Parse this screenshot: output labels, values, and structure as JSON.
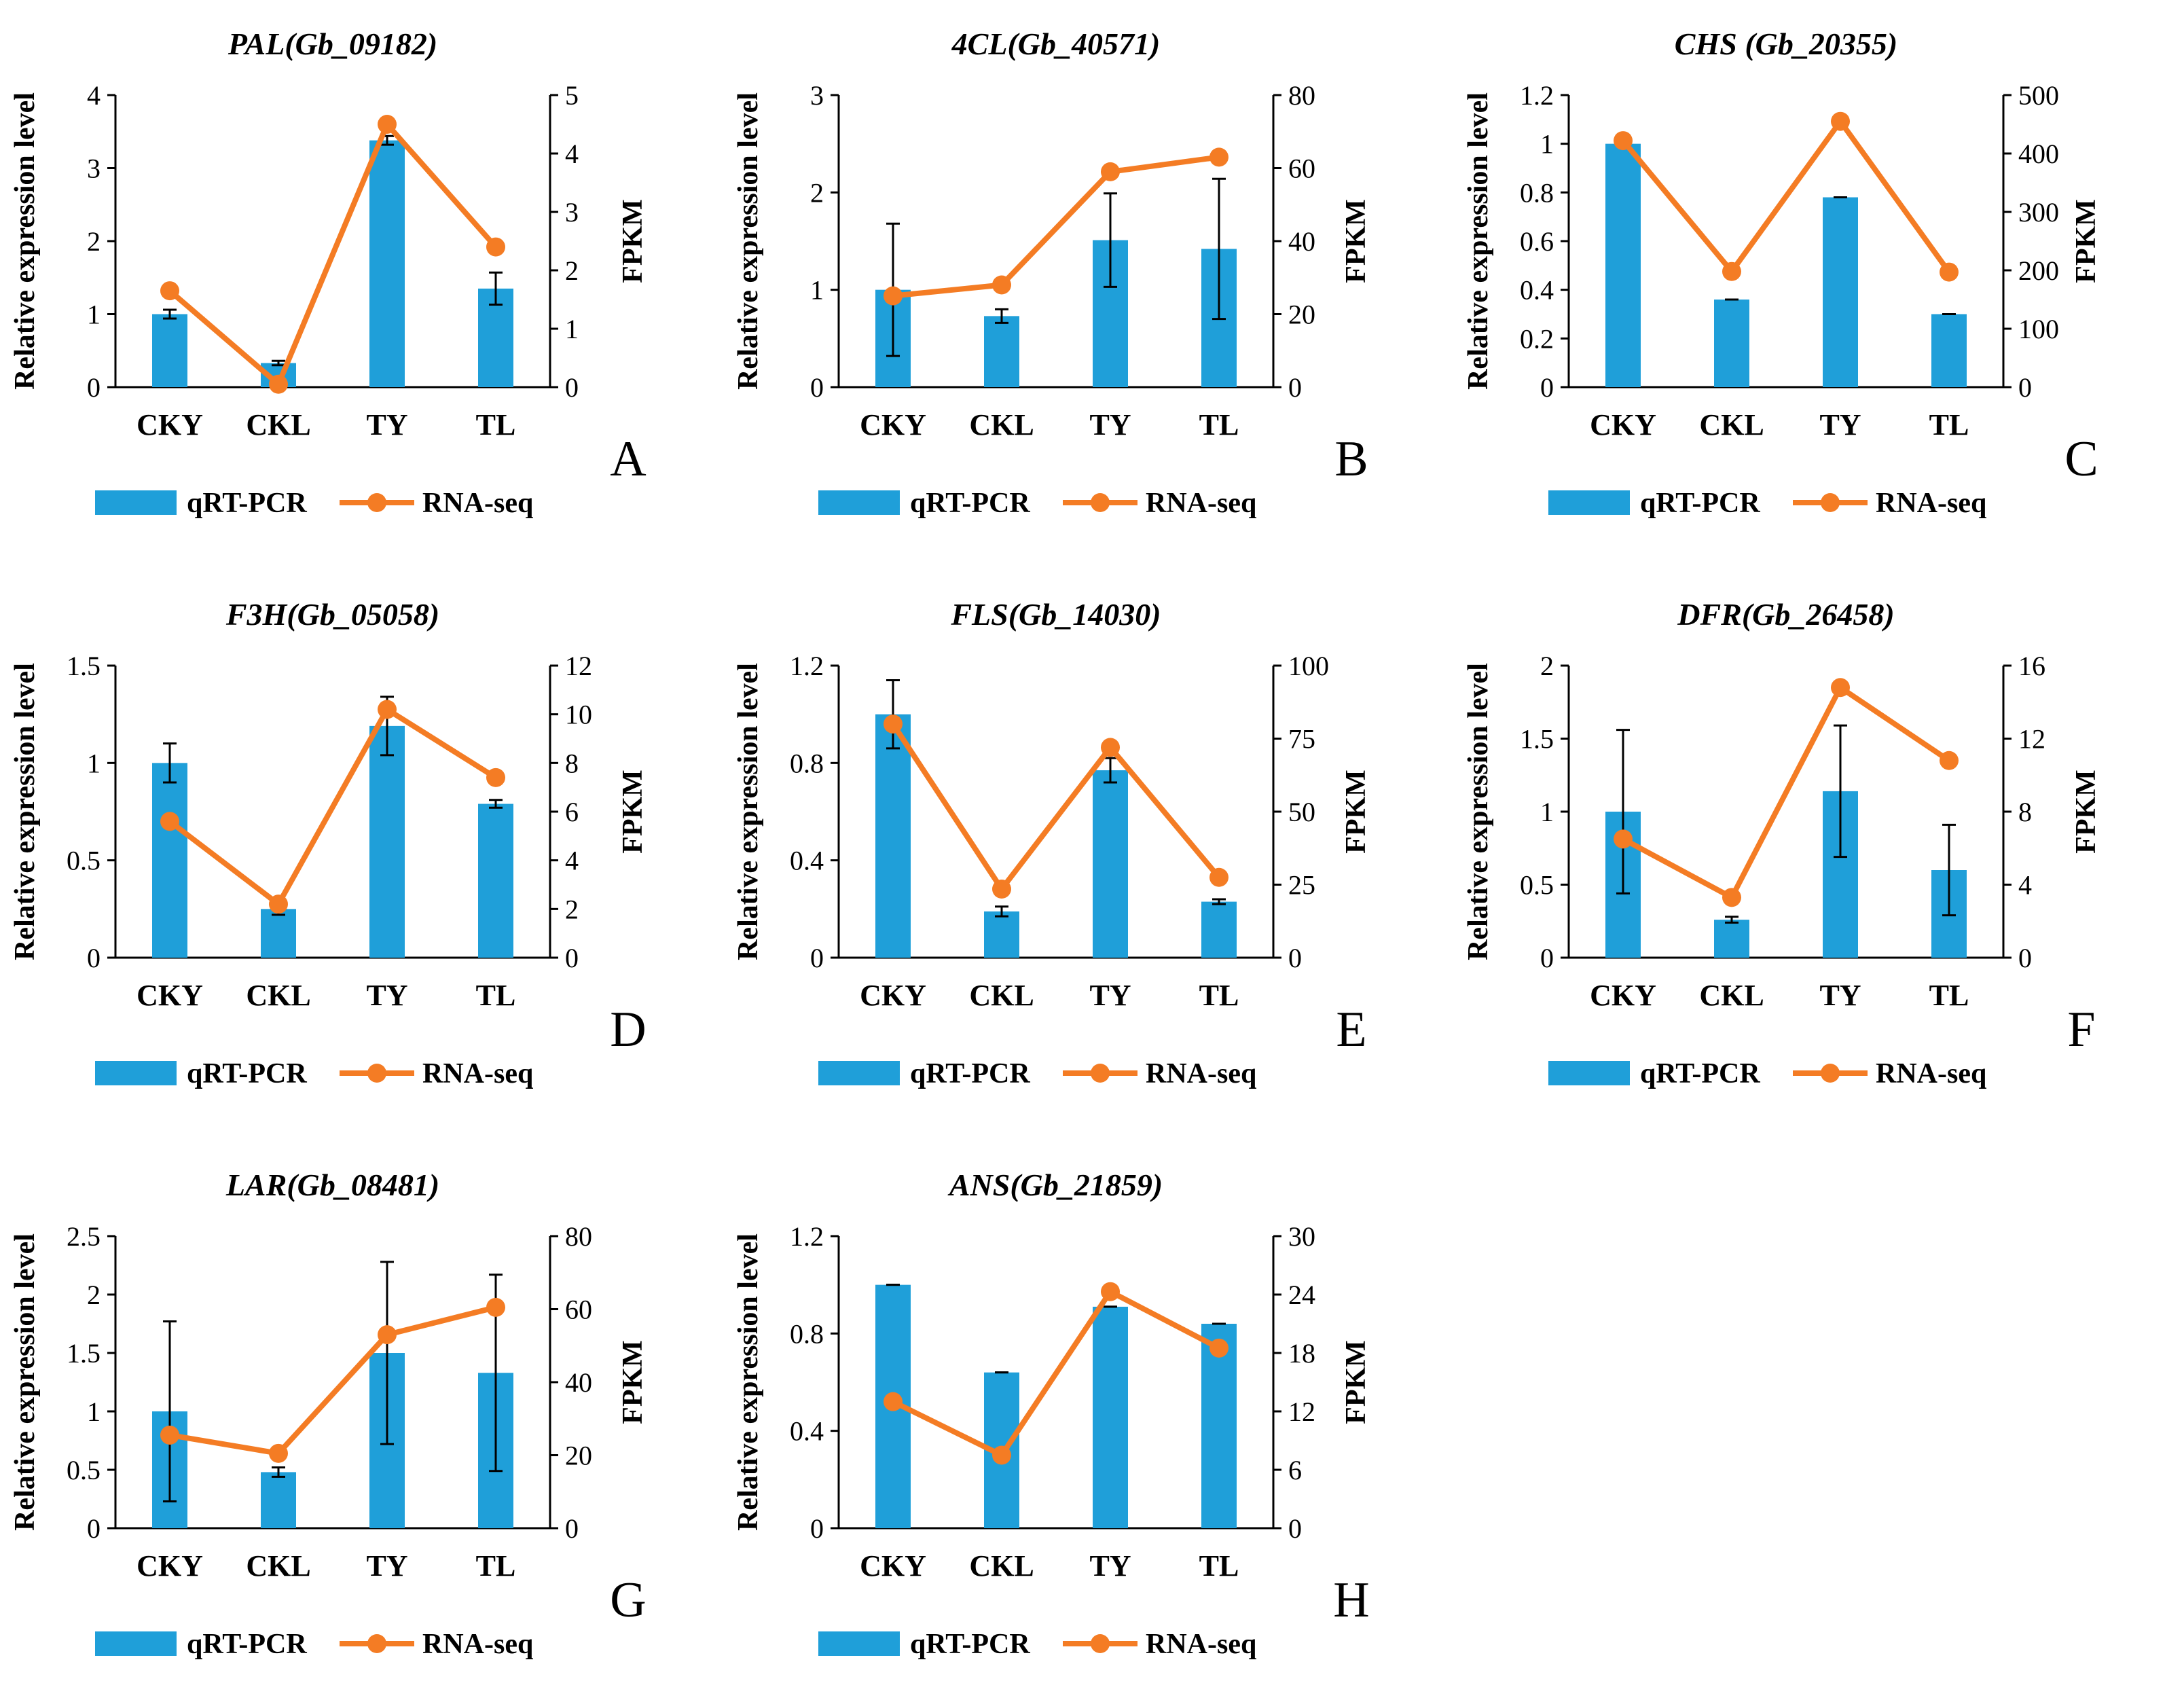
{
  "colors": {
    "bar": "#1f9fd9",
    "line": "#f47c24",
    "axis": "#000000"
  },
  "legend": {
    "bar_label": "qRT-PCR",
    "line_label": "RNA-seq"
  },
  "chart_data": [
    {
      "type": "bar+line",
      "panel": "A",
      "title": "PAL(Gb_09182)",
      "ylabel": "Relative expression level",
      "y2label": "FPKM",
      "categories": [
        "CKY",
        "CKL",
        "TY",
        "TL"
      ],
      "ylim": [
        0,
        4
      ],
      "yticks": [
        "0",
        "1",
        "2",
        "3",
        "4"
      ],
      "y2lim": [
        0,
        5
      ],
      "y2ticks": [
        "0",
        "1",
        "2",
        "3",
        "4",
        "5"
      ],
      "series": [
        {
          "name": "qRT-PCR",
          "axis": "left",
          "kind": "bar",
          "values": [
            1.0,
            0.33,
            3.38,
            1.35
          ],
          "errors": [
            0.06,
            0.03,
            0.06,
            0.22
          ]
        },
        {
          "name": "RNA-seq",
          "axis": "right",
          "kind": "line",
          "values": [
            1.65,
            0.05,
            4.5,
            2.4
          ]
        }
      ]
    },
    {
      "type": "bar+line",
      "panel": "B",
      "title": "4CL(Gb_40571)",
      "ylabel": "Relative expression level",
      "y2label": "FPKM",
      "categories": [
        "CKY",
        "CKL",
        "TY",
        "TL"
      ],
      "ylim": [
        0,
        3
      ],
      "yticks": [
        "0",
        "1",
        "2",
        "3"
      ],
      "y2lim": [
        0,
        80
      ],
      "y2ticks": [
        "0",
        "20",
        "40",
        "60",
        "80"
      ],
      "series": [
        {
          "name": "qRT-PCR",
          "axis": "left",
          "kind": "bar",
          "values": [
            1.0,
            0.73,
            1.51,
            1.42
          ],
          "errors": [
            0.68,
            0.07,
            0.48,
            0.72
          ]
        },
        {
          "name": "RNA-seq",
          "axis": "right",
          "kind": "line",
          "values": [
            25,
            28,
            59,
            63
          ]
        }
      ]
    },
    {
      "type": "bar+line",
      "panel": "C",
      "title": "CHS (Gb_20355)",
      "ylabel": "Relative expression level",
      "y2label": "FPKM",
      "categories": [
        "CKY",
        "CKL",
        "TY",
        "TL"
      ],
      "ylim": [
        0,
        1.2
      ],
      "yticks": [
        "0",
        "0.2",
        "0.4",
        "0.6",
        "0.8",
        "1",
        "1.2"
      ],
      "y2lim": [
        0,
        500
      ],
      "y2ticks": [
        "0",
        "100",
        "200",
        "300",
        "400",
        "500"
      ],
      "series": [
        {
          "name": "qRT-PCR",
          "axis": "left",
          "kind": "bar",
          "values": [
            1.0,
            0.36,
            0.78,
            0.3
          ],
          "errors": [
            0,
            0,
            0,
            0
          ]
        },
        {
          "name": "RNA-seq",
          "axis": "right",
          "kind": "line",
          "values": [
            422,
            198,
            455,
            197
          ]
        }
      ]
    },
    {
      "type": "bar+line",
      "panel": "D",
      "title": "F3H(Gb_05058)",
      "ylabel": "Relative expression level",
      "y2label": "FPKM",
      "categories": [
        "CKY",
        "CKL",
        "TY",
        "TL"
      ],
      "ylim": [
        0,
        1.5
      ],
      "yticks": [
        "0",
        "0.5",
        "1",
        "1.5"
      ],
      "y2lim": [
        0,
        12
      ],
      "y2ticks": [
        "0",
        "2",
        "4",
        "6",
        "8",
        "10",
        "12"
      ],
      "series": [
        {
          "name": "qRT-PCR",
          "axis": "left",
          "kind": "bar",
          "values": [
            1.0,
            0.25,
            1.19,
            0.79
          ],
          "errors": [
            0.1,
            0.03,
            0.15,
            0.02
          ]
        },
        {
          "name": "RNA-seq",
          "axis": "right",
          "kind": "line",
          "values": [
            5.6,
            2.2,
            10.2,
            7.4
          ]
        }
      ]
    },
    {
      "type": "bar+line",
      "panel": "E",
      "title": "FLS(Gb_14030)",
      "ylabel": "Relative expression level",
      "y2label": "FPKM",
      "categories": [
        "CKY",
        "CKL",
        "TY",
        "TL"
      ],
      "ylim": [
        0,
        1.2
      ],
      "yticks": [
        "0",
        "0.4",
        "0.8",
        "1.2"
      ],
      "y2lim": [
        0,
        100
      ],
      "y2ticks": [
        "0",
        "25",
        "50",
        "75",
        "100"
      ],
      "series": [
        {
          "name": "qRT-PCR",
          "axis": "left",
          "kind": "bar",
          "values": [
            1.0,
            0.19,
            0.77,
            0.23
          ],
          "errors": [
            0.14,
            0.02,
            0.05,
            0.01
          ]
        },
        {
          "name": "RNA-seq",
          "axis": "right",
          "kind": "line",
          "values": [
            80,
            23.5,
            72,
            27.5
          ]
        }
      ]
    },
    {
      "type": "bar+line",
      "panel": "F",
      "title": "DFR(Gb_26458)",
      "ylabel": "Relative expression level",
      "y2label": "FPKM",
      "categories": [
        "CKY",
        "CKL",
        "TY",
        "TL"
      ],
      "ylim": [
        0,
        2
      ],
      "yticks": [
        "0",
        "0.5",
        "1",
        "1.5",
        "2"
      ],
      "y2lim": [
        0,
        16
      ],
      "y2ticks": [
        "0",
        "4",
        "8",
        "12",
        "16"
      ],
      "series": [
        {
          "name": "qRT-PCR",
          "axis": "left",
          "kind": "bar",
          "values": [
            1.0,
            0.26,
            1.14,
            0.6
          ],
          "errors": [
            0.56,
            0.02,
            0.45,
            0.31
          ]
        },
        {
          "name": "RNA-seq",
          "axis": "right",
          "kind": "line",
          "values": [
            6.5,
            3.3,
            14.8,
            10.8
          ]
        }
      ]
    },
    {
      "type": "bar+line",
      "panel": "G",
      "title": "LAR(Gb_08481)",
      "ylabel": "Relative expression level",
      "y2label": "FPKM",
      "categories": [
        "CKY",
        "CKL",
        "TY",
        "TL"
      ],
      "ylim": [
        0,
        2.5
      ],
      "yticks": [
        "0",
        "0.5",
        "1",
        "1.5",
        "2",
        "2.5"
      ],
      "y2lim": [
        0,
        80
      ],
      "y2ticks": [
        "0",
        "20",
        "40",
        "60",
        "80"
      ],
      "series": [
        {
          "name": "qRT-PCR",
          "axis": "left",
          "kind": "bar",
          "values": [
            1.0,
            0.48,
            1.5,
            1.33
          ],
          "errors": [
            0.77,
            0.04,
            0.78,
            0.84
          ]
        },
        {
          "name": "RNA-seq",
          "axis": "right",
          "kind": "line",
          "values": [
            25.5,
            20.5,
            53,
            60.5
          ]
        }
      ]
    },
    {
      "type": "bar+line",
      "panel": "H",
      "title": "ANS(Gb_21859)",
      "ylabel": "Relative expression level",
      "y2label": "FPKM",
      "categories": [
        "CKY",
        "CKL",
        "TY",
        "TL"
      ],
      "ylim": [
        0,
        1.2
      ],
      "yticks": [
        "0",
        "0.4",
        "0.8",
        "1.2"
      ],
      "y2lim": [
        0,
        30
      ],
      "y2ticks": [
        "0",
        "6",
        "12",
        "18",
        "24",
        "30"
      ],
      "series": [
        {
          "name": "qRT-PCR",
          "axis": "left",
          "kind": "bar",
          "values": [
            1.0,
            0.64,
            0.91,
            0.84
          ],
          "errors": [
            0,
            0,
            0,
            0
          ]
        },
        {
          "name": "RNA-seq",
          "axis": "right",
          "kind": "line",
          "values": [
            13,
            7.5,
            24.3,
            18.5
          ]
        }
      ]
    }
  ]
}
